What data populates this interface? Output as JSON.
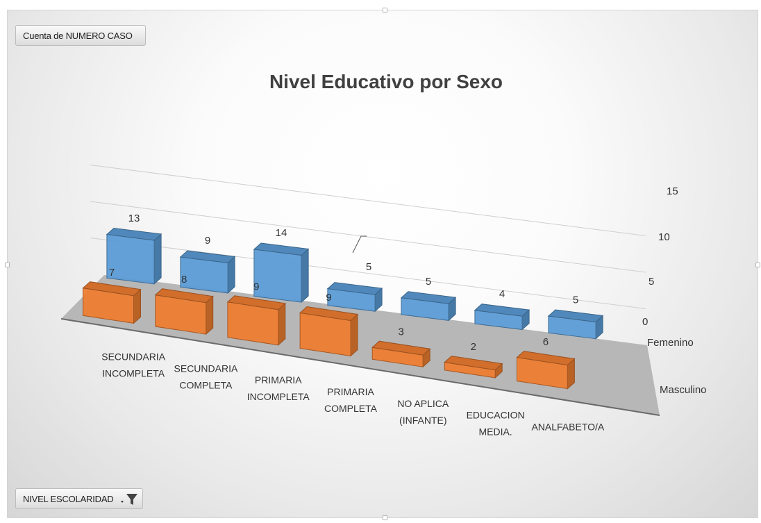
{
  "pivot": {
    "value_field": "Cuenta de NUMERO CASO",
    "axis_field": "NIVEL ESCOLARIDAD"
  },
  "chart_data": {
    "type": "bar",
    "subtype": "3d-column",
    "title": "Nivel Educativo por Sexo",
    "categories": [
      "SECUNDARIA INCOMPLETA",
      "SECUNDARIA COMPLETA",
      "PRIMARIA INCOMPLETA",
      "PRIMARIA COMPLETA",
      "NO APLICA (INFANTE)",
      "EDUCACION MEDIA.",
      "ANALFABETO/A"
    ],
    "series": [
      {
        "name": "Femenino",
        "values": [
          13,
          9,
          14,
          5,
          5,
          4,
          5
        ],
        "color": "#5b9bd5"
      },
      {
        "name": "Masculino",
        "values": [
          7,
          8,
          9,
          9,
          3,
          2,
          6
        ],
        "color": "#ed7d31"
      }
    ],
    "z_ticks": [
      0,
      5,
      10,
      15
    ],
    "ylim": [
      0,
      15
    ],
    "grid": true,
    "legend": "none"
  }
}
